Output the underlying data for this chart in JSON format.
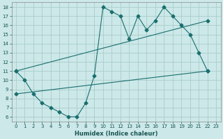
{
  "title": "",
  "xlabel": "Humidex (Indice chaleur)",
  "bg_color": "#cce8e8",
  "grid_color": "#aacccc",
  "line_color": "#1a6e6e",
  "xlim": [
    -0.5,
    23.5
  ],
  "ylim": [
    5.5,
    18.5
  ],
  "xticks": [
    0,
    1,
    2,
    3,
    4,
    5,
    6,
    7,
    8,
    9,
    10,
    11,
    12,
    13,
    14,
    15,
    16,
    17,
    18,
    19,
    20,
    21,
    22,
    23
  ],
  "yticks": [
    6,
    7,
    8,
    9,
    10,
    11,
    12,
    13,
    14,
    15,
    16,
    17,
    18
  ],
  "curve1_x": [
    0,
    1,
    2,
    3,
    4,
    5,
    6,
    7,
    8,
    9,
    10,
    11,
    12,
    13,
    14,
    15,
    16,
    17,
    18,
    19,
    20,
    21,
    22
  ],
  "curve1_y": [
    11,
    10,
    8.5,
    7.5,
    7,
    6.5,
    6,
    6,
    7.5,
    10.5,
    18,
    17.5,
    17,
    14.5,
    17,
    15.5,
    16.5,
    18,
    17,
    16,
    15,
    13,
    11
  ],
  "curve2_x": [
    0,
    22
  ],
  "curve2_y": [
    11,
    16.5
  ],
  "curve3_x": [
    0,
    22
  ],
  "curve3_y": [
    8.5,
    11
  ],
  "figsize": [
    3.2,
    2.0
  ],
  "dpi": 100
}
